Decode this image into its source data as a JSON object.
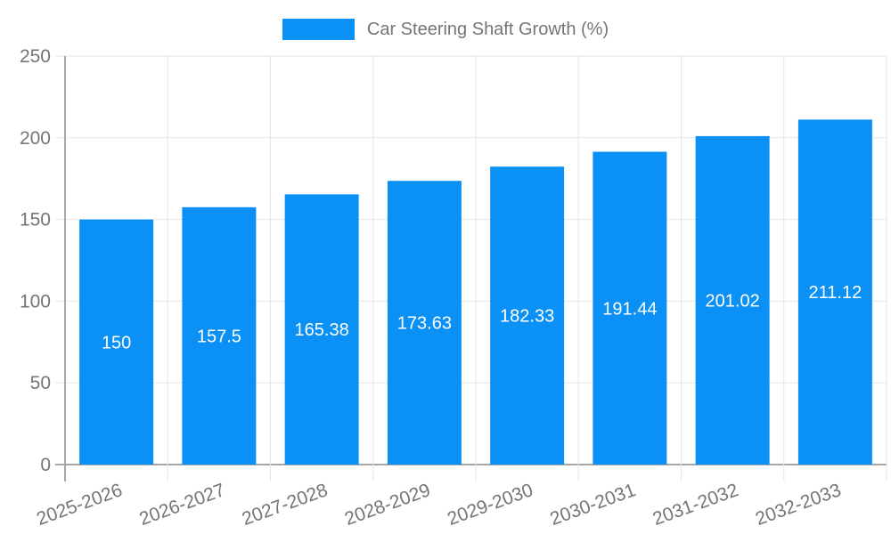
{
  "legend": {
    "label": "Car Steering Shaft Growth (%)"
  },
  "chart_data": {
    "type": "bar",
    "title": "Car Steering Shaft Growth (%)",
    "categories": [
      "2025-2026",
      "2026-2027",
      "2027-2028",
      "2028-2029",
      "2029-2030",
      "2030-2031",
      "2031-2032",
      "2032-2033"
    ],
    "values": [
      150,
      157.5,
      165.38,
      173.63,
      182.33,
      191.44,
      201.02,
      211.12
    ],
    "bar_labels": [
      "150",
      "157.5",
      "165.38",
      "173.63",
      "182.33",
      "191.44",
      "201.02",
      "211.12"
    ],
    "xlabel": "",
    "ylabel": "",
    "ylim": [
      0,
      250
    ],
    "yticks": [
      0,
      50,
      100,
      150,
      200,
      250
    ],
    "grid": true,
    "legend_position": "top",
    "x_label_rotation": -20,
    "colors": {
      "bar": "#0b90f5",
      "value_label": "#ffffff",
      "axis_text": "#757575",
      "grid": "#e6e6e6",
      "axis_line": "#a6a6a6",
      "background": "#ffffff"
    }
  }
}
